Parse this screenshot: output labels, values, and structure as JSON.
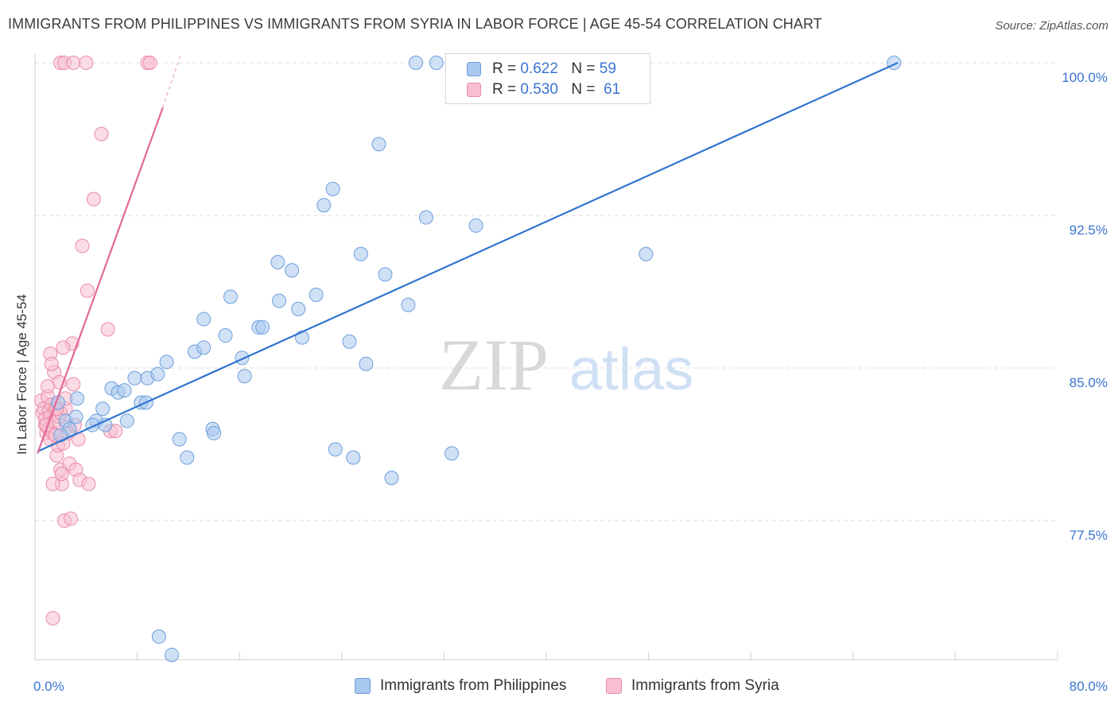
{
  "title": "IMMIGRANTS FROM PHILIPPINES VS IMMIGRANTS FROM SYRIA IN LABOR FORCE | AGE 45-54 CORRELATION CHART",
  "source": "Source: ZipAtlas.com",
  "watermark": {
    "zip": "ZIP",
    "atlas": "atlas"
  },
  "legend": {
    "philippines": {
      "r_label": "R =",
      "r_value": "0.622",
      "n_label": "N =",
      "n_value": "59",
      "color": "#a9c8ef",
      "stroke": "#6e9edc"
    },
    "syria": {
      "r_label": "R =",
      "r_value": "0.530",
      "n_label": "N =",
      "n_value": "61",
      "color": "#f7bfd0",
      "stroke": "#ea8ba8"
    }
  },
  "bottom_legend": {
    "philippines": "Immigrants from Philippines",
    "syria": "Immigrants from Syria"
  },
  "chart_data": {
    "type": "scatter",
    "title": "IMMIGRANTS FROM PHILIPPINES VS IMMIGRANTS FROM SYRIA IN LABOR FORCE | AGE 45-54 CORRELATION CHART",
    "xlabel": "",
    "ylabel": "In Labor Force | Age 45-54",
    "xlim": [
      0,
      80
    ],
    "ylim": [
      70.5,
      101.0
    ],
    "x_tick_labels": [
      "0.0%",
      "80.0%"
    ],
    "y_ticks": [
      77.5,
      85.0,
      92.5,
      100.0
    ],
    "y_tick_labels": [
      "77.5%",
      "85.0%",
      "92.5%",
      "100.0%"
    ],
    "series": [
      {
        "name": "Immigrants from Philippines",
        "color": "#6e9edc",
        "fill": "#a9c8ef",
        "trend_color": "#2f74d0",
        "trend": {
          "x": [
            0.2,
            67.5
          ],
          "y": [
            80.9,
            100.0
          ]
        },
        "points": [
          [
            2.4,
            82.4
          ],
          [
            2.7,
            82.0
          ],
          [
            3.3,
            83.5
          ],
          [
            4.8,
            82.4
          ],
          [
            4.5,
            82.2
          ],
          [
            5.3,
            83.0
          ],
          [
            6.0,
            84.0
          ],
          [
            6.5,
            83.8
          ],
          [
            7.2,
            82.4
          ],
          [
            7.0,
            83.9
          ],
          [
            7.8,
            84.5
          ],
          [
            8.3,
            83.3
          ],
          [
            8.8,
            84.5
          ],
          [
            8.7,
            83.3
          ],
          [
            9.6,
            84.7
          ],
          [
            10.3,
            85.3
          ],
          [
            11.3,
            81.5
          ],
          [
            11.9,
            80.6
          ],
          [
            12.5,
            85.8
          ],
          [
            13.2,
            86.0
          ],
          [
            13.2,
            87.4
          ],
          [
            13.9,
            82.0
          ],
          [
            14.0,
            81.8
          ],
          [
            14.9,
            86.6
          ],
          [
            15.3,
            88.5
          ],
          [
            16.2,
            85.5
          ],
          [
            16.4,
            84.6
          ],
          [
            17.5,
            87.0
          ],
          [
            17.8,
            87.0
          ],
          [
            19.0,
            90.2
          ],
          [
            19.1,
            88.3
          ],
          [
            20.1,
            89.8
          ],
          [
            20.6,
            87.9
          ],
          [
            20.9,
            86.5
          ],
          [
            22.0,
            88.6
          ],
          [
            22.6,
            93.0
          ],
          [
            23.3,
            93.8
          ],
          [
            23.5,
            81.0
          ],
          [
            24.6,
            86.3
          ],
          [
            24.9,
            80.6
          ],
          [
            25.5,
            90.6
          ],
          [
            25.9,
            85.2
          ],
          [
            26.9,
            96.0
          ],
          [
            27.4,
            89.6
          ],
          [
            27.9,
            79.6
          ],
          [
            29.2,
            88.1
          ],
          [
            29.8,
            100.0
          ],
          [
            30.6,
            92.4
          ],
          [
            31.4,
            100.0
          ],
          [
            32.6,
            80.8
          ],
          [
            34.5,
            92.0
          ],
          [
            47.8,
            90.6
          ],
          [
            67.2,
            100.0
          ],
          [
            9.7,
            71.8
          ],
          [
            10.7,
            70.9
          ],
          [
            2.0,
            81.7
          ],
          [
            3.2,
            82.6
          ],
          [
            1.8,
            83.3
          ],
          [
            5.5,
            82.2
          ]
        ]
      },
      {
        "name": "Immigrants from Syria",
        "color": "#ea8ba8",
        "fill": "#f7bfd0",
        "trend_color": "#e2679a",
        "trend": {
          "x": [
            0.2,
            10.0
          ],
          "y": [
            80.8,
            97.8
          ]
        },
        "trend_dashed": {
          "x": [
            10.0,
            11.4
          ],
          "y": [
            97.8,
            100.4
          ]
        },
        "points": [
          [
            0.5,
            83.4
          ],
          [
            0.6,
            82.8
          ],
          [
            0.7,
            83.0
          ],
          [
            0.8,
            82.2
          ],
          [
            0.9,
            81.8
          ],
          [
            0.8,
            82.5
          ],
          [
            1.0,
            83.6
          ],
          [
            1.1,
            82.9
          ],
          [
            1.1,
            82.0
          ],
          [
            1.2,
            81.5
          ],
          [
            1.2,
            82.6
          ],
          [
            1.3,
            83.2
          ],
          [
            1.4,
            81.8
          ],
          [
            1.5,
            82.4
          ],
          [
            1.5,
            84.8
          ],
          [
            1.6,
            83.0
          ],
          [
            1.7,
            80.7
          ],
          [
            1.8,
            81.2
          ],
          [
            1.9,
            82.6
          ],
          [
            2.0,
            80.0
          ],
          [
            2.1,
            79.3
          ],
          [
            2.1,
            79.8
          ],
          [
            2.3,
            77.5
          ],
          [
            2.4,
            83.0
          ],
          [
            2.5,
            82.1
          ],
          [
            2.6,
            81.8
          ],
          [
            2.7,
            80.3
          ],
          [
            2.8,
            77.6
          ],
          [
            2.9,
            86.2
          ],
          [
            3.0,
            84.2
          ],
          [
            3.1,
            82.2
          ],
          [
            3.2,
            80.0
          ],
          [
            3.5,
            79.5
          ],
          [
            3.4,
            81.5
          ],
          [
            4.2,
            79.3
          ],
          [
            3.7,
            91.0
          ],
          [
            4.1,
            88.8
          ],
          [
            4.6,
            93.3
          ],
          [
            5.2,
            96.5
          ],
          [
            5.7,
            86.9
          ],
          [
            5.9,
            81.9
          ],
          [
            6.3,
            81.9
          ],
          [
            2.0,
            100.0
          ],
          [
            2.3,
            100.0
          ],
          [
            3.0,
            100.0
          ],
          [
            4.0,
            100.0
          ],
          [
            8.8,
            100.0
          ],
          [
            9.0,
            100.0
          ],
          [
            1.2,
            85.7
          ],
          [
            1.3,
            85.2
          ],
          [
            1.9,
            84.3
          ],
          [
            2.0,
            82.8
          ],
          [
            1.4,
            79.3
          ],
          [
            1.0,
            84.1
          ],
          [
            1.7,
            83.0
          ],
          [
            2.2,
            81.3
          ],
          [
            0.9,
            82.2
          ],
          [
            1.6,
            81.7
          ],
          [
            2.2,
            86.0
          ],
          [
            1.4,
            72.7
          ],
          [
            2.4,
            83.5
          ]
        ]
      }
    ]
  }
}
